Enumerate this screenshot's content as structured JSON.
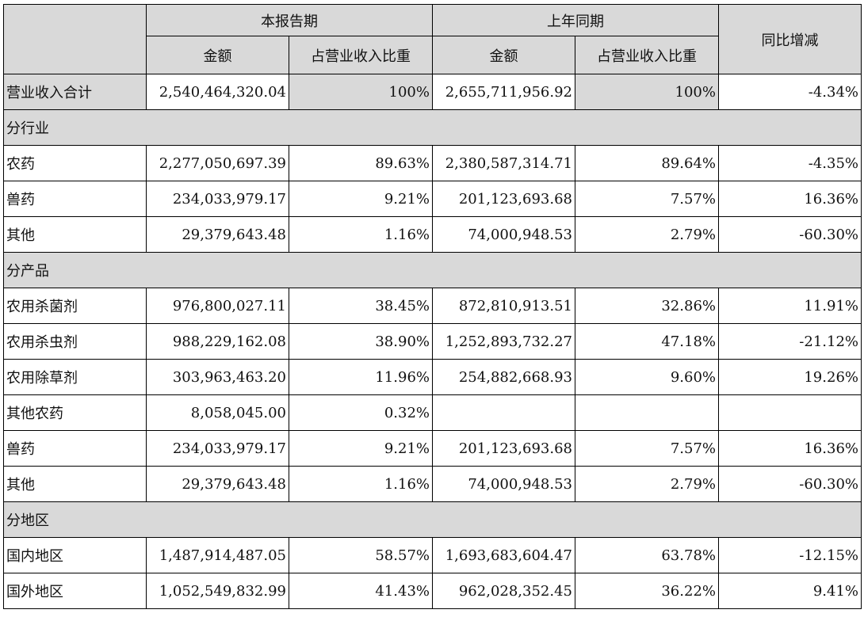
{
  "header": {
    "current_period": "本报告期",
    "prior_period": "上年同期",
    "yoy_change": "同比增减",
    "amount": "金额",
    "ratio": "占营业收入比重"
  },
  "total": {
    "label": "营业收入合计",
    "cur_amount": "2,540,464,320.04",
    "cur_ratio": "100%",
    "prev_amount": "2,655,711,956.92",
    "prev_ratio": "100%",
    "change": "-4.34%"
  },
  "sections": [
    {
      "title": "分行业",
      "rows": [
        {
          "label": "农药",
          "cur_amount": "2,277,050,697.39",
          "cur_ratio": "89.63%",
          "prev_amount": "2,380,587,314.71",
          "prev_ratio": "89.64%",
          "change": "-4.35%"
        },
        {
          "label": "兽药",
          "cur_amount": "234,033,979.17",
          "cur_ratio": "9.21%",
          "prev_amount": "201,123,693.68",
          "prev_ratio": "7.57%",
          "change": "16.36%"
        },
        {
          "label": "其他",
          "cur_amount": "29,379,643.48",
          "cur_ratio": "1.16%",
          "prev_amount": "74,000,948.53",
          "prev_ratio": "2.79%",
          "change": "-60.30%"
        }
      ]
    },
    {
      "title": "分产品",
      "rows": [
        {
          "label": "农用杀菌剂",
          "cur_amount": "976,800,027.11",
          "cur_ratio": "38.45%",
          "prev_amount": "872,810,913.51",
          "prev_ratio": "32.86%",
          "change": "11.91%"
        },
        {
          "label": "农用杀虫剂",
          "cur_amount": "988,229,162.08",
          "cur_ratio": "38.90%",
          "prev_amount": "1,252,893,732.27",
          "prev_ratio": "47.18%",
          "change": "-21.12%"
        },
        {
          "label": "农用除草剂",
          "cur_amount": "303,963,463.20",
          "cur_ratio": "11.96%",
          "prev_amount": "254,882,668.93",
          "prev_ratio": "9.60%",
          "change": "19.26%"
        },
        {
          "label": "其他农药",
          "cur_amount": "8,058,045.00",
          "cur_ratio": "0.32%",
          "prev_amount": "",
          "prev_ratio": "",
          "change": ""
        },
        {
          "label": "兽药",
          "cur_amount": "234,033,979.17",
          "cur_ratio": "9.21%",
          "prev_amount": "201,123,693.68",
          "prev_ratio": "7.57%",
          "change": "16.36%"
        },
        {
          "label": "其他",
          "cur_amount": "29,379,643.48",
          "cur_ratio": "1.16%",
          "prev_amount": "74,000,948.53",
          "prev_ratio": "2.79%",
          "change": "-60.30%"
        }
      ]
    },
    {
      "title": "分地区",
      "rows": [
        {
          "label": "国内地区",
          "cur_amount": "1,487,914,487.05",
          "cur_ratio": "58.57%",
          "prev_amount": "1,693,683,604.47",
          "prev_ratio": "63.78%",
          "change": "-12.15%"
        },
        {
          "label": "国外地区",
          "cur_amount": "1,052,549,832.99",
          "cur_ratio": "41.43%",
          "prev_amount": "962,028,352.45",
          "prev_ratio": "36.22%",
          "change": "9.41%"
        }
      ]
    }
  ]
}
